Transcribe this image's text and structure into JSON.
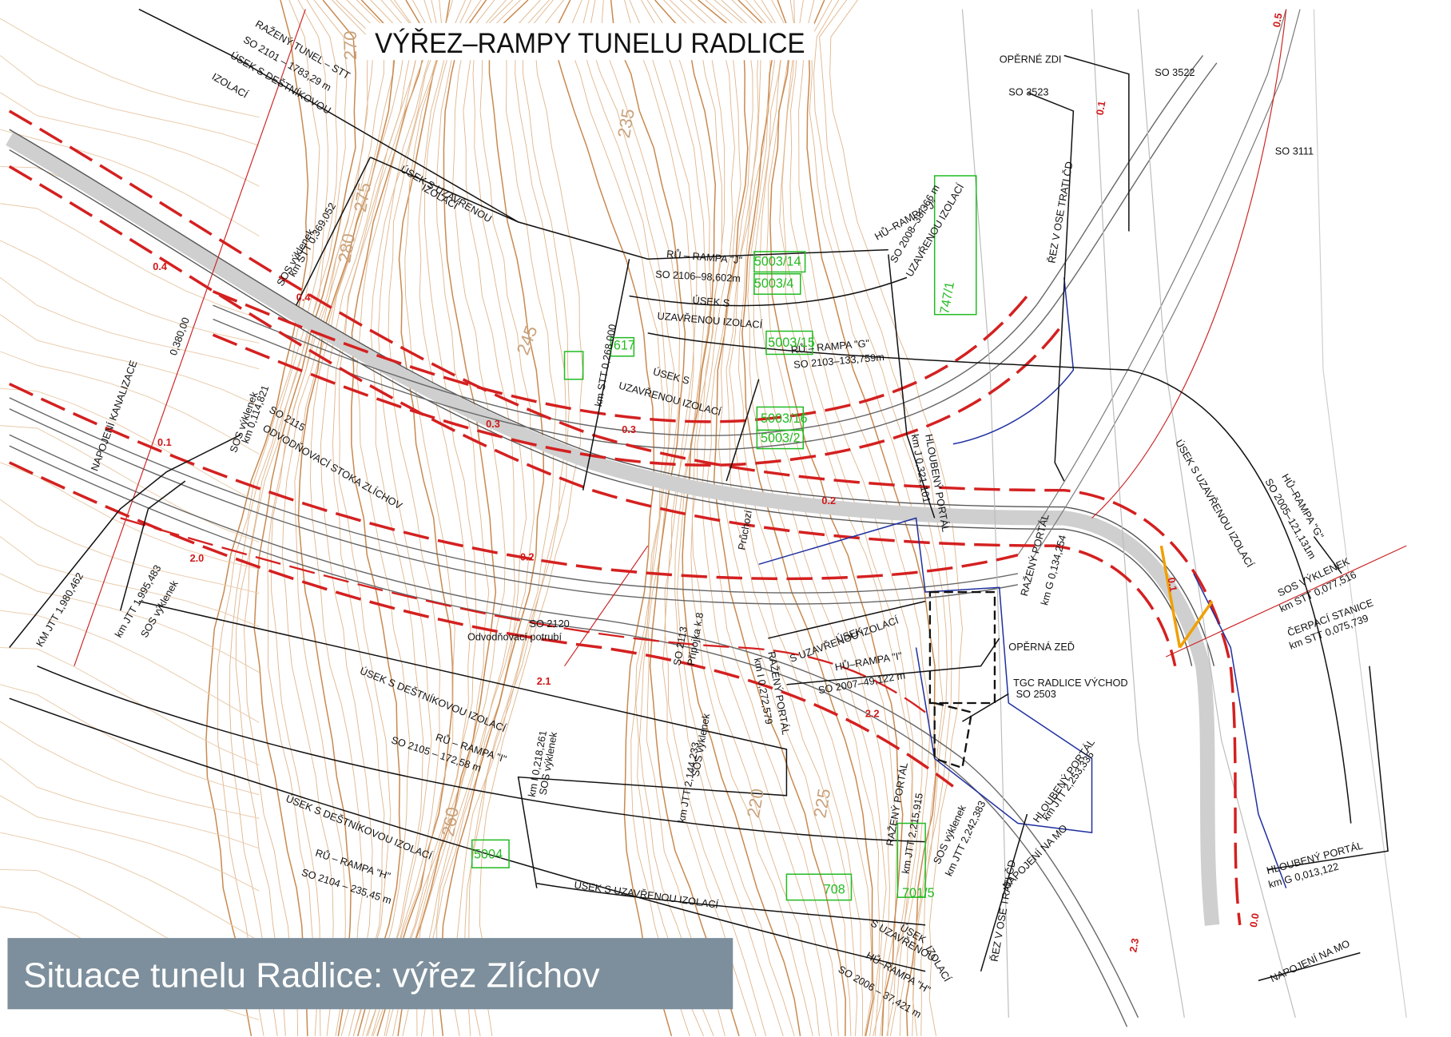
{
  "header": {
    "title": "VÝŘEZ–RAMPY TUNELU RADLICE"
  },
  "caption": "Situace tunelu Radlice: výřez Zlíchov",
  "labels": [
    "RAŽENÝ TUNEL – STT",
    "SO 2101 – 1783,29 m",
    "ÚSEK S DEŠTNÍKOVOU",
    "IZOLACÍ",
    "ÚSEK S UZAVŘENOU",
    "IZOLACÍ",
    "RŮ – RAMPA \"J\"",
    "SO 2106–98,602m",
    "ÚSEK S",
    "UZAVŘENOU IZOLACÍ",
    "RŮ – RAMPA \"G\"",
    "SO 2103–133,759m",
    "ÚSEK S",
    "UZAVŘENOU IZOLACÍ",
    "km STT 0,268.000",
    "HŮ–RAMPA \"J\"",
    "SO 2008–38,366 m",
    "UZAVŘENOU IZOLACÍ",
    "OPĚRNÉ ZDI",
    "SO 3523",
    "SO 3522",
    "SO 3111",
    "ŘEZ V OSE TRATI ČD",
    "NAPOJENÍ KANALIZACE",
    "0,380,00",
    "ODVODŇOVACÍ STOKA ZLÍCHOV",
    "SO 2115",
    "KM JTT 1,980,462",
    "km JTT 1,995,483",
    "SOS výklenek",
    "SO 2120",
    "Odvodňovací potrubí",
    "ÚSEK S DEŠTNÍKOVOU IZOLACÍ",
    "RŮ – RAMPA \"I\"",
    "SO 2105 – 172,58 m",
    "ÚSEK S DEŠTNÍKOVOU IZOLACÍ",
    "RŮ – RAMPA \"H\"",
    "SO 2104 – 235,45 m",
    "ÚSEK S UZAVŘENOU IZOLACÍ",
    "HŮ–RAMPA \"I\"",
    "SO 2007–49,122 m",
    "ÚSEK",
    "S UZAVŘENOU IZOLACÍ",
    "TGC RADLICE VÝCHOD",
    "SO 2503",
    "OPĚRNÁ ZEĎ",
    "RAŽENÝ PORTÁL",
    "km G 0,134,254",
    "HŮ–RAMPA \"G\"",
    "SO 2005–121,131m",
    "ÚSEK S UZAVŘENOU IZOLACÍ",
    "SOS VÝKLENEK",
    "km STT 0,077,516",
    "ČERPACÍ STANICE",
    "km STT 0,075,739",
    "HLOUBENÝ PORTÁL",
    "km G 0,013,122",
    "NAPOJENÍ NA MO",
    "NAPOJENÍ NA MO",
    "HŮ–RAMPA \"H\"",
    "SO 2006 – 37,421 m",
    "ÚSEK",
    "S UZAVŘENOU",
    "IZOLACÍ",
    "HLOUBENÝ PORTÁL",
    "km J 0,321,101",
    "RAŽENÝ PORTÁL",
    "km JTT 2,215,915",
    "SOS výklenek",
    "km JTT 2,242,383",
    "HLOUBENÝ PORTÁL",
    "km JTT 2,253,336",
    "SOS výklenek",
    "km 0,114,821",
    "SOS výklenek",
    "km I 0,218,261",
    "km JTT 2,144,233",
    "SOS výklenek",
    "RAŽENÝ PORTÁL",
    "km I 0,272,579",
    "SO 2113",
    "Přípojka k.8",
    "SOS výklenek",
    "km STT 0,369,052",
    "ŘEZ V OSE TRATI ČD",
    "Průchozí"
  ],
  "contours": [
    "270",
    "275",
    "280",
    "235",
    "245",
    "260",
    "220",
    "225"
  ],
  "parcels": [
    "5003/14",
    "5003/4",
    "747/1",
    "5003/15",
    "5003/16",
    "5003/2",
    "5004",
    "708",
    "701/5",
    "617"
  ],
  "chainages": [
    "0.4",
    "0.4",
    "0.3",
    "0.3",
    "0.2",
    "0.2",
    "0.1",
    "2.0",
    "2.1",
    "2.2",
    "2.3",
    "0.1",
    "0.5",
    "0.1",
    "0.0"
  ]
}
